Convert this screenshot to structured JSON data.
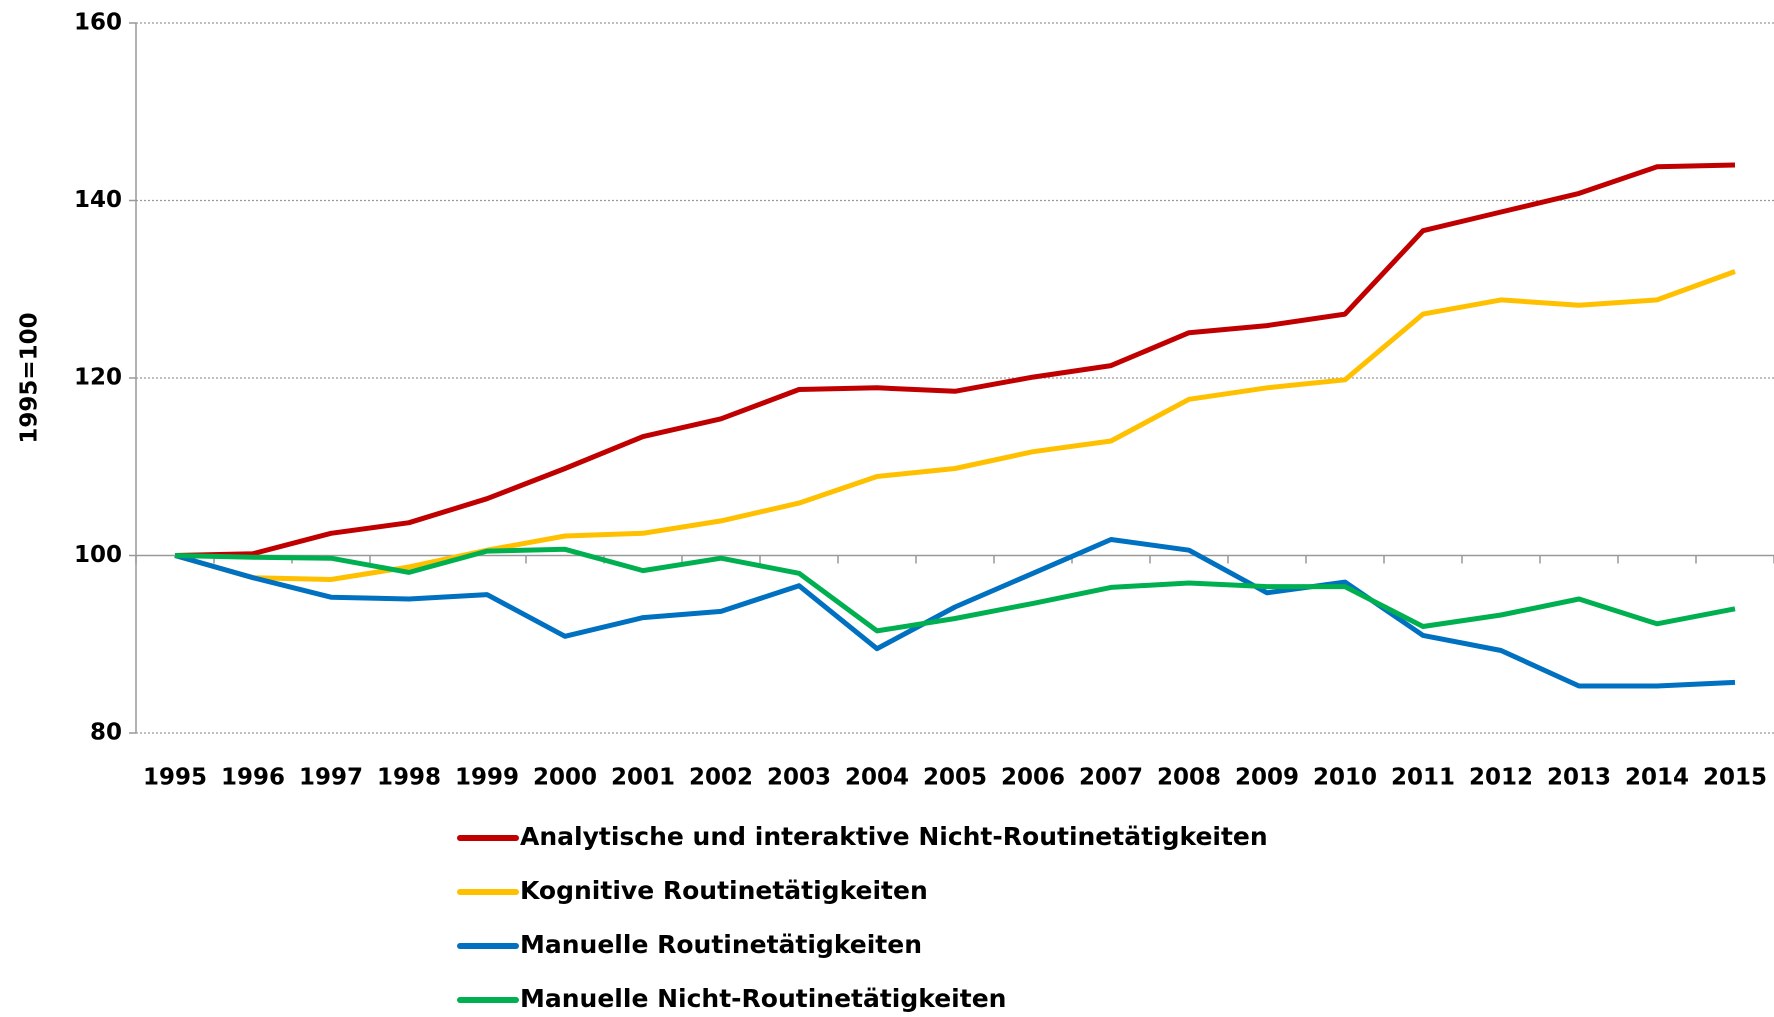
{
  "chart_data": {
    "type": "line",
    "y_label": "1995=100",
    "categories": [
      "1995",
      "1996",
      "1997",
      "1998",
      "1999",
      "2000",
      "2001",
      "2002",
      "2003",
      "2004",
      "2005",
      "2006",
      "2007",
      "2008",
      "2009",
      "2010",
      "2011",
      "2012",
      "2013",
      "2014",
      "2015"
    ],
    "series": [
      {
        "name": "Analytische und interaktive Nicht-Routinetätigkeiten",
        "color": "#c00000",
        "values": [
          100,
          100.2,
          102.5,
          103.7,
          106.4,
          109.8,
          113.4,
          115.4,
          118.7,
          118.9,
          118.5,
          120.1,
          121.4,
          125.1,
          125.9,
          127.2,
          136.6,
          138.7,
          140.8,
          143.8,
          144.0
        ]
      },
      {
        "name": "Kognitive Routinetätigkeiten",
        "color": "#ffc000",
        "values": [
          100,
          97.5,
          97.3,
          98.7,
          100.6,
          102.2,
          102.5,
          103.9,
          105.9,
          108.9,
          109.8,
          111.7,
          112.9,
          117.6,
          118.9,
          119.8,
          127.2,
          128.8,
          128.2,
          128.8,
          132.0
        ]
      },
      {
        "name": "Manuelle Routinetätigkeiten",
        "color": "#0070c0",
        "values": [
          100,
          97.5,
          95.3,
          95.1,
          95.6,
          90.9,
          93.0,
          93.7,
          96.6,
          89.5,
          94.2,
          98.0,
          101.8,
          100.6,
          95.8,
          97.0,
          91.0,
          89.3,
          85.3,
          85.3,
          85.7
        ]
      },
      {
        "name": "Manuelle Nicht-Routinetätigkeiten",
        "color": "#00b050",
        "values": [
          100,
          99.8,
          99.7,
          98.1,
          100.5,
          100.7,
          98.3,
          99.7,
          98.0,
          91.5,
          92.9,
          94.6,
          96.4,
          96.9,
          96.5,
          96.5,
          92.0,
          93.3,
          95.1,
          92.3,
          94.0
        ]
      }
    ],
    "ylim": [
      80,
      160
    ],
    "yticks": [
      80,
      100,
      120,
      140,
      160
    ],
    "grid": true,
    "x_axis_crosses": 100
  }
}
